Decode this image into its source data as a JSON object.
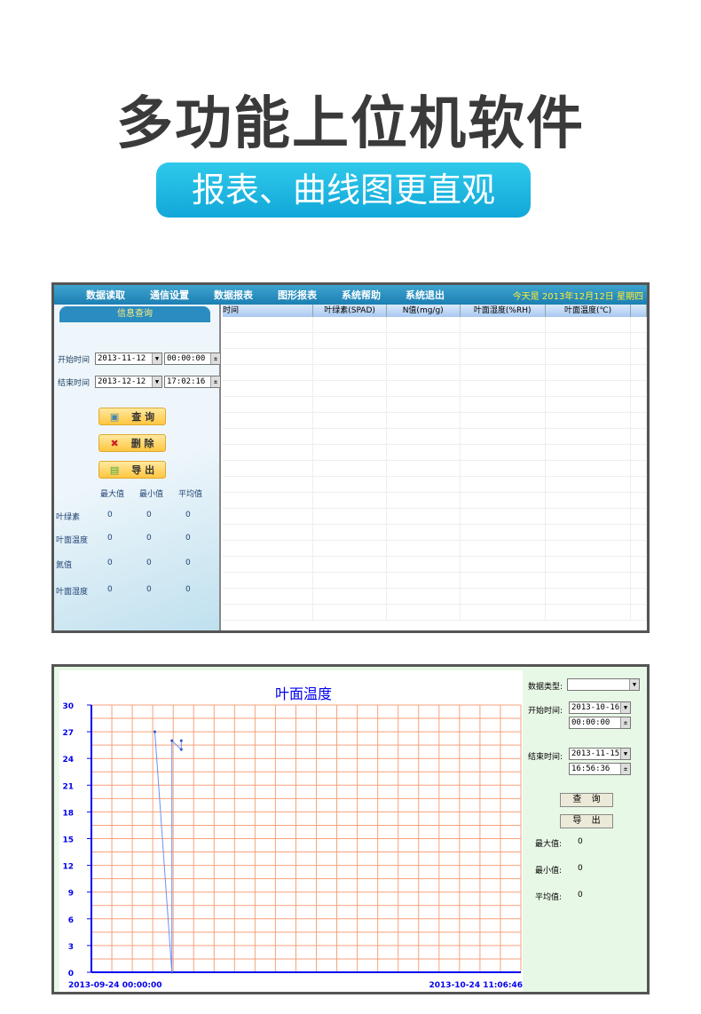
{
  "hero": {
    "title": "多功能上位机软件",
    "subtitle": "报表、曲线图更直观"
  },
  "report": {
    "menu": [
      "数据读取",
      "通信设置",
      "数据报表",
      "图形报表",
      "系统帮助",
      "系统退出"
    ],
    "today": "今天是 2013年12月12日 星期四",
    "tab": "信息查询",
    "start_label": "开始时间",
    "start_date": "2013-11-12",
    "start_time": "00:00:00",
    "end_label": "结束时间",
    "end_date": "2013-12-12",
    "end_time": "17:02:16",
    "buttons": {
      "query": "查 询",
      "delete": "删 除",
      "export": "导 出"
    },
    "stat_headers": [
      "最大值",
      "最小值",
      "平均值"
    ],
    "stats": [
      {
        "name": "叶绿素",
        "max": "0",
        "min": "0",
        "avg": "0"
      },
      {
        "name": "叶面温度",
        "max": "0",
        "min": "0",
        "avg": "0"
      },
      {
        "name": "氮值",
        "max": "0",
        "min": "0",
        "avg": "0"
      },
      {
        "name": "叶面湿度",
        "max": "0",
        "min": "0",
        "avg": "0"
      }
    ],
    "columns": [
      "时间",
      "叶绿素(SPAD)",
      "N值(mg/g)",
      "叶面湿度(%RH)",
      "叶面温度(℃)",
      ""
    ]
  },
  "graph": {
    "type_label": "数据类型:",
    "type_value": "",
    "start_label": "开始时间:",
    "start_date": "2013-10-16",
    "start_time": "00:00:00",
    "end_label": "结束时间:",
    "end_date": "2013-11-15",
    "end_time": "16:56:36",
    "query": "查 询",
    "export": "导 出",
    "max_label": "最大值:",
    "max": "0",
    "min_label": "最小值:",
    "min": "0",
    "avg_label": "平均值:",
    "avg": "0"
  },
  "chart_data": {
    "type": "line",
    "title": "叶面温度",
    "xlim": [
      "2013-09-24 00:00:00",
      "2013-10-24 11:06:46"
    ],
    "x_tick_labels": [
      "2013-09-24 00:00:00",
      "2013-10-24 11:06:46"
    ],
    "ylim": [
      0,
      30
    ],
    "y_ticks": [
      0,
      3,
      6,
      9,
      12,
      15,
      18,
      21,
      24,
      27,
      30
    ],
    "grid": true,
    "line_color": "#6f8ff5",
    "grid_color": "#f7a27a",
    "axis_color": "#0000ee",
    "points": [
      {
        "x": "2013-09-28 12:00",
        "y": 27
      },
      {
        "x": "2013-09-29 17:00",
        "y": 0
      },
      {
        "x": "2013-09-29 17:00",
        "y": 26
      },
      {
        "x": "2013-09-30 09:00",
        "y": 25
      },
      {
        "x": "2013-09-30 09:00",
        "y": 26
      }
    ]
  }
}
